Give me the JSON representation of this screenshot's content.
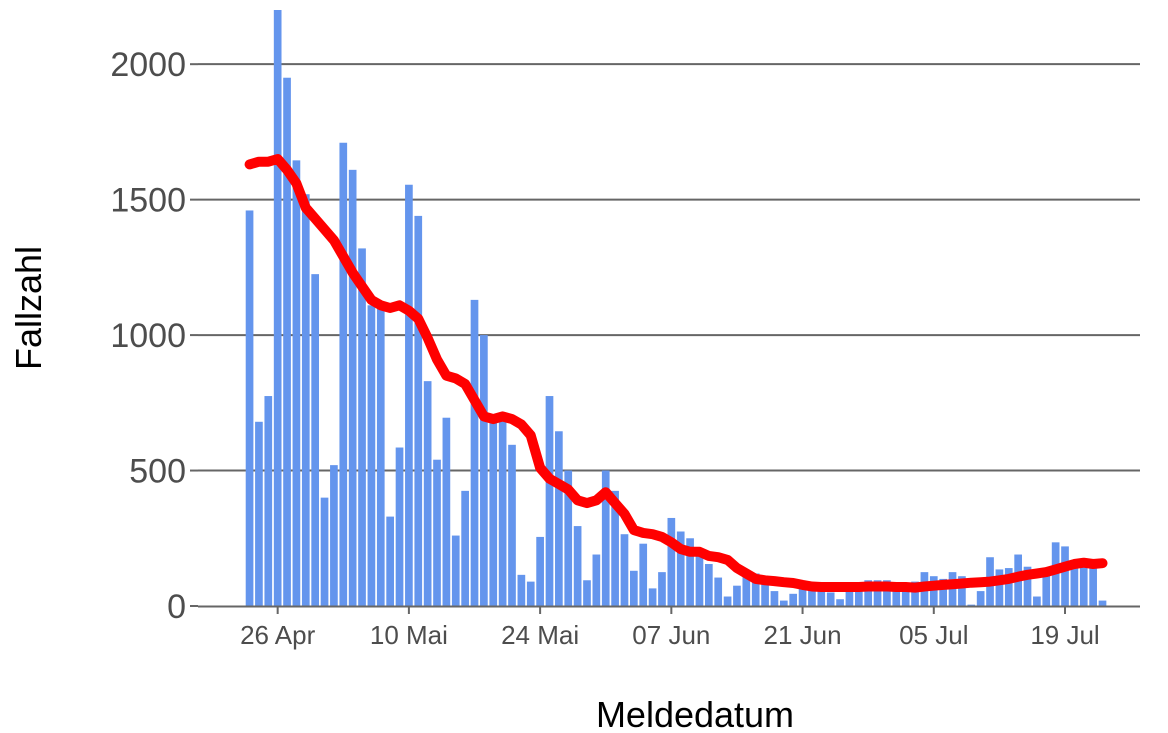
{
  "chart_data": {
    "type": "bar",
    "xlabel": "Meldedatum",
    "ylabel": "Fallzahl",
    "ylim": [
      0,
      2200
    ],
    "yticks": [
      0,
      500,
      1000,
      1500,
      2000
    ],
    "ytick_labels": [
      "0",
      "500",
      "1000",
      "1500",
      "2000"
    ],
    "x_start_date": "2020-04-23",
    "x_range_days": [
      -5.5,
      95
    ],
    "xticks_days": [
      3,
      17,
      31,
      45,
      59,
      73,
      87
    ],
    "xtick_labels": [
      "26 Apr",
      "10 Mai",
      "24 Mai",
      "07 Jun",
      "21 Jun",
      "05 Jul",
      "19 Jul"
    ],
    "grid": "horizontal major",
    "colors": {
      "bars": "#6495ED",
      "line": "#FF0000",
      "grid": "#666666",
      "axis": "#666666"
    },
    "series": [
      {
        "type": "bar",
        "values": [
          1460,
          680,
          775,
          2200,
          1950,
          1645,
          1520,
          1225,
          400,
          520,
          1710,
          1610,
          1320,
          1110,
          1120,
          330,
          585,
          1555,
          1440,
          830,
          540,
          695,
          260,
          425,
          1130,
          1000,
          700,
          700,
          595,
          115,
          90,
          255,
          775,
          645,
          500,
          295,
          95,
          190,
          500,
          425,
          265,
          130,
          230,
          65,
          125,
          325,
          275,
          250,
          195,
          155,
          105,
          35,
          75,
          115,
          120,
          90,
          55,
          20,
          45,
          75,
          80,
          75,
          50,
          25,
          65,
          85,
          95,
          95,
          95,
          70,
          70,
          90,
          125,
          110,
          100,
          125,
          110,
          5,
          55,
          180,
          135,
          140,
          190,
          145,
          35,
          130,
          235,
          220,
          160,
          145,
          150,
          20
        ]
      },
      {
        "type": "line",
        "values": [
          1630,
          1640,
          1640,
          1650,
          1610,
          1560,
          1470,
          1430,
          1390,
          1350,
          1290,
          1230,
          1180,
          1130,
          1110,
          1100,
          1110,
          1090,
          1060,
          990,
          910,
          850,
          840,
          820,
          760,
          700,
          690,
          700,
          690,
          670,
          630,
          510,
          470,
          450,
          430,
          390,
          380,
          390,
          420,
          380,
          340,
          280,
          270,
          265,
          255,
          235,
          210,
          200,
          200,
          185,
          180,
          170,
          140,
          120,
          100,
          95,
          92,
          88,
          85,
          78,
          72,
          70,
          70,
          70,
          70,
          70,
          72,
          72,
          72,
          70,
          70,
          68,
          72,
          75,
          78,
          80,
          83,
          86,
          88,
          90,
          95,
          100,
          108,
          115,
          120,
          125,
          135,
          145,
          155,
          160,
          155,
          158
        ]
      }
    ]
  }
}
